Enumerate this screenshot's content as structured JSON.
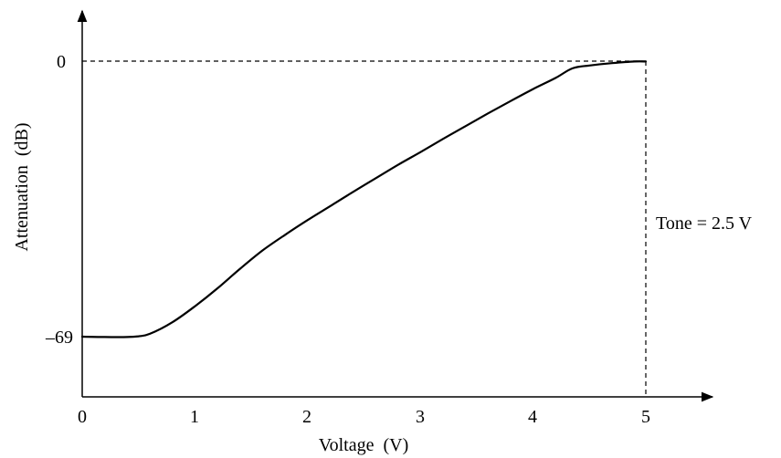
{
  "chart_data": {
    "type": "line",
    "title": "",
    "xlabel": "Voltage  (V)",
    "ylabel": "Attenuation  (dB)",
    "xlim": [
      0,
      5
    ],
    "ylim": [
      -69,
      0
    ],
    "x_ticks": [
      "0",
      "1",
      "2",
      "3",
      "4",
      "5"
    ],
    "y_ticks": [
      "–69",
      "0"
    ],
    "annotation": "Tone = 2.5 V",
    "grid": false,
    "line_color": "#000000",
    "series": [
      {
        "x": [
          0,
          0.2,
          0.4,
          0.5,
          0.6,
          0.8,
          1.0,
          1.2,
          1.4,
          1.6,
          1.8,
          2.0,
          2.2,
          2.4,
          2.6,
          2.8,
          3.0,
          3.2,
          3.4,
          3.6,
          3.8,
          4.0,
          4.2,
          4.35,
          4.5,
          4.7,
          4.9,
          5.0
        ],
        "y": [
          -69,
          -69.1,
          -69.1,
          -68.9,
          -68.3,
          -65.4,
          -61.4,
          -56.9,
          -52.0,
          -47.4,
          -43.5,
          -39.8,
          -36.3,
          -32.8,
          -29.4,
          -26.0,
          -22.8,
          -19.5,
          -16.3,
          -13.1,
          -10.0,
          -7.0,
          -4.2,
          -1.8,
          -1.1,
          -0.5,
          -0.1,
          -0.1
        ]
      }
    ]
  }
}
